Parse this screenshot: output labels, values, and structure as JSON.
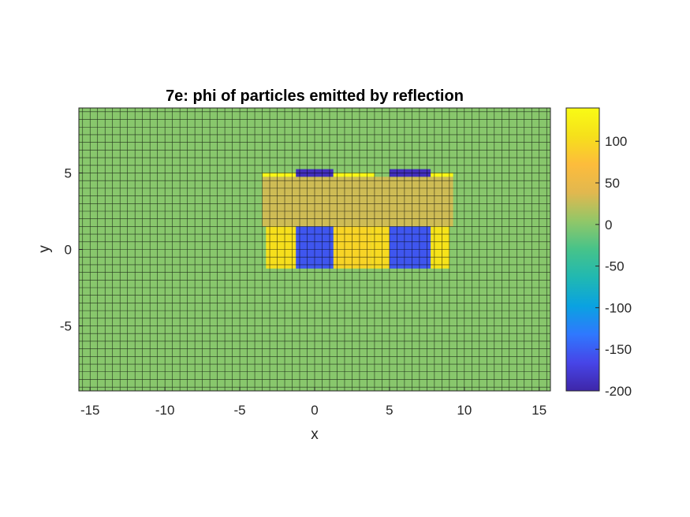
{
  "chart_data": {
    "type": "heatmap",
    "title": "7e: phi of particles emitted by reflection",
    "xlabel": "x",
    "ylabel": "y",
    "xlim": [
      -15.75,
      15.75
    ],
    "ylim": [
      -9.25,
      9.25
    ],
    "xticks": [
      -15,
      -10,
      -5,
      0,
      5,
      10,
      15
    ],
    "yticks": [
      -5,
      0,
      5
    ],
    "grid_step": 0.5,
    "grid_lines": true,
    "background_value": 0,
    "colorbar": {
      "position": "right",
      "range": [
        -200,
        140
      ],
      "ticks": [
        -200,
        -150,
        -100,
        -50,
        0,
        50,
        100
      ],
      "colormap": [
        "#3e26a8",
        "#4745e8",
        "#2f78fe",
        "#0aa2e1",
        "#20b8b2",
        "#46c38a",
        "#91c768",
        "#e1b84f",
        "#fdbc3c",
        "#f6e01b",
        "#f9fb15"
      ]
    },
    "regions": [
      {
        "x": [
          -3.5,
          9.25
        ],
        "y": [
          1.5,
          4.75
        ],
        "value": 30
      },
      {
        "x": [
          -3.25,
          -1.25
        ],
        "y": [
          -1.25,
          1.5
        ],
        "value": 105
      },
      {
        "x": [
          -3.5,
          -1.25
        ],
        "y": [
          4.75,
          5.0
        ],
        "value": 135
      },
      {
        "x": [
          -1.25,
          1.25
        ],
        "y": [
          4.75,
          5.25
        ],
        "value": -190
      },
      {
        "x": [
          1.25,
          4.0
        ],
        "y": [
          4.75,
          5.0
        ],
        "value": 135
      },
      {
        "x": [
          1.25,
          3.75
        ],
        "y": [
          -1.25,
          1.5
        ],
        "value": 95
      },
      {
        "x": [
          -1.25,
          1.25
        ],
        "y": [
          -1.25,
          1.5
        ],
        "value": -155
      },
      {
        "x": [
          3.75,
          5.0
        ],
        "y": [
          -1.25,
          1.5
        ],
        "value": 100
      },
      {
        "x": [
          5.0,
          7.75
        ],
        "y": [
          4.75,
          5.25
        ],
        "value": -190
      },
      {
        "x": [
          7.75,
          9.25
        ],
        "y": [
          4.75,
          5.0
        ],
        "value": 135
      },
      {
        "x": [
          5.0,
          7.75
        ],
        "y": [
          -1.25,
          1.5
        ],
        "value": -155
      },
      {
        "x": [
          7.75,
          9.0
        ],
        "y": [
          -1.25,
          1.5
        ],
        "value": 110
      }
    ]
  }
}
